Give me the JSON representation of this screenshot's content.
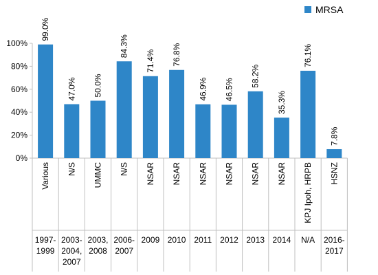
{
  "chart_data": {
    "type": "bar",
    "categories": [
      "Various",
      "N/S",
      "UMMC",
      "N/S",
      "NSAR",
      "NSAR",
      "NSAR",
      "NSAR",
      "NSAR",
      "NSAR",
      "KPJ Ipoh, HRPB",
      "HSNZ"
    ],
    "group_labels": [
      "1997-\n1999",
      "2003-\n2004,\n2007",
      "2003,\n2008",
      "2006-\n2007",
      "2009",
      "2010",
      "2011",
      "2012",
      "2013",
      "2014",
      "N/A",
      "2016-\n2017"
    ],
    "series": [
      {
        "name": "MRSA",
        "values": [
          99.0,
          47.0,
          50.0,
          84.3,
          71.4,
          76.8,
          46.9,
          46.5,
          58.2,
          35.3,
          76.1,
          7.8
        ],
        "data_labels": [
          "99.0%",
          "47.0%",
          "50.0%",
          "84.3%",
          "71.4%",
          "76.8%",
          "46.9%",
          "46.5%",
          "58.2%",
          "35.3%",
          "76.1%",
          "7.8%"
        ]
      }
    ],
    "y_ticks": [
      "0%",
      "20%",
      "40%",
      "60%",
      "80%",
      "100%"
    ],
    "ylim": [
      0,
      100
    ],
    "legend": "top-right",
    "grid": false,
    "colors": {
      "bar": "#2E86C8",
      "axis": "#BFBFBF"
    }
  }
}
